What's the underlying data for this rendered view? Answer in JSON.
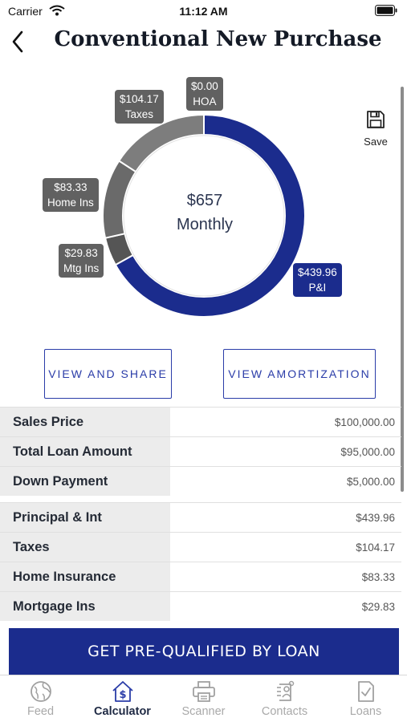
{
  "status_bar": {
    "carrier": "Carrier",
    "time": "11:12 AM"
  },
  "nav": {
    "title": "Conventional New Purchase",
    "back_icon": "chevron-left-icon"
  },
  "chart_data": {
    "type": "pie",
    "style": "donut",
    "center_value": "$657",
    "center_label": "Monthly",
    "slices": [
      {
        "label": "P&I",
        "amount": "$439.96",
        "value": 439.96,
        "color": "#1b2c8d"
      },
      {
        "label": "Mtg Ins",
        "amount": "$29.83",
        "value": 29.83,
        "color": "#555555"
      },
      {
        "label": "Home Ins",
        "amount": "$83.33",
        "value": 83.33,
        "color": "#6a6a6a"
      },
      {
        "label": "Taxes",
        "amount": "$104.17",
        "value": 104.17,
        "color": "#7d7d7d"
      },
      {
        "label": "HOA",
        "amount": "$0.00",
        "value": 0.0,
        "color": "#8c8c8c"
      }
    ]
  },
  "save": {
    "label": "Save",
    "icon": "floppy-disk-icon"
  },
  "buttons": {
    "view_share": "VIEW AND SHARE",
    "view_amortization": "VIEW AMORTIZATION"
  },
  "loan_summary": [
    {
      "label": "Sales Price",
      "value": "$100,000.00"
    },
    {
      "label": "Total Loan Amount",
      "value": "$95,000.00"
    },
    {
      "label": "Down Payment",
      "value": "$5,000.00"
    }
  ],
  "payment_breakdown": [
    {
      "label": "Principal & Int",
      "value": "$439.96"
    },
    {
      "label": "Taxes",
      "value": "$104.17"
    },
    {
      "label": "Home Insurance",
      "value": "$83.33"
    },
    {
      "label": "Mortgage Ins",
      "value": "$29.83"
    }
  ],
  "cta": {
    "label": "GET PRE-QUALIFIED BY LOAN"
  },
  "tabs": [
    {
      "label": "Feed",
      "icon": "globe-icon",
      "active": false
    },
    {
      "label": "Calculator",
      "icon": "house-dollar-icon",
      "active": true
    },
    {
      "label": "Scanner",
      "icon": "printer-icon",
      "active": false
    },
    {
      "label": "Contacts",
      "icon": "contacts-icon",
      "active": false
    },
    {
      "label": "Loans",
      "icon": "document-check-icon",
      "active": false
    }
  ],
  "colors": {
    "brand": "#1b2c8d",
    "outline": "#2a3ca8",
    "label_bg": "#ececec"
  }
}
